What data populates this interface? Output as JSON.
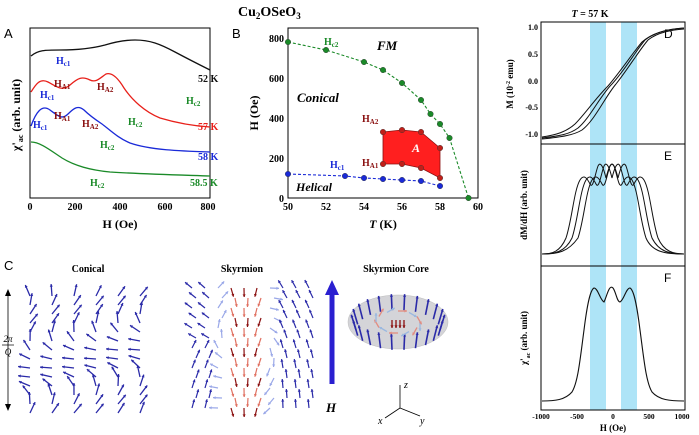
{
  "title": "Cu2OSeO3",
  "title_base": "Cu",
  "title_sub1": "2",
  "title_mid": "OSeO",
  "title_sub2": "3",
  "colors": {
    "black": "#111111",
    "red": "#e8201a",
    "blue": "#1a2ad8",
    "green": "#1a8a28",
    "darkred": "#8a1010",
    "lightblue": "#aee4f7",
    "arrowblue": "#2a1fd0"
  },
  "panelA": {
    "label": "A",
    "ylabel_main": "χ'",
    "ylabel_sub": "ac",
    "ylabel_rest": " (arb. unit)",
    "xlabel": "H (Oe)",
    "xticks": [
      "0",
      "200",
      "400",
      "600",
      "800"
    ],
    "curves": [
      {
        "label": "52 K",
        "color": "#111111"
      },
      {
        "label": "57 K",
        "color": "#e8201a"
      },
      {
        "label": "58 K",
        "color": "#1a2ad8"
      },
      {
        "label": "58.5 K",
        "color": "#1a8a28"
      }
    ],
    "annotations": [
      {
        "main": "H",
        "sub": "c1",
        "color": "#1a2ad8"
      },
      {
        "main": "H",
        "sub": "A1",
        "color": "#8a1010"
      },
      {
        "main": "H",
        "sub": "A2",
        "color": "#8a1010"
      },
      {
        "main": "H",
        "sub": "c1",
        "color": "#1a2ad8"
      },
      {
        "main": "H",
        "sub": "c2",
        "color": "#1a8a28"
      },
      {
        "main": "H",
        "sub": "c1",
        "color": "#1a2ad8"
      },
      {
        "main": "H",
        "sub": "A1",
        "color": "#8a1010"
      },
      {
        "main": "H",
        "sub": "A2",
        "color": "#8a1010"
      },
      {
        "main": "H",
        "sub": "c2",
        "color": "#1a8a28"
      },
      {
        "main": "H",
        "sub": "c2",
        "color": "#1a8a28"
      },
      {
        "main": "H",
        "sub": "c2",
        "color": "#1a8a28"
      }
    ]
  },
  "panelB": {
    "label": "B",
    "ylabel": "H (Oe)",
    "xlabel_T": "T",
    "xlabel_rest": " (K)",
    "xticks": [
      "50",
      "52",
      "54",
      "56",
      "58",
      "60"
    ],
    "yticks": [
      "0",
      "200",
      "400",
      "600",
      "800"
    ],
    "phase_fm": "FM",
    "phase_conical": "Conical",
    "phase_helical": "Helical",
    "phase_a": "A",
    "hc2_main": "H",
    "hc2_sub": "c2",
    "hc1_main": "H",
    "hc1_sub": "c1",
    "ha2_main": "H",
    "ha2_sub": "A2",
    "ha1_main": "H",
    "ha1_sub": "A1",
    "chart_data": {
      "type": "scatter",
      "xlabel": "T (K)",
      "ylabel": "H (Oe)",
      "xlim": [
        50,
        60
      ],
      "ylim": [
        0,
        850
      ],
      "series": [
        {
          "name": "Hc2",
          "x": [
            50,
            52,
            54,
            55,
            56,
            57,
            57.5,
            58,
            58.5,
            59.5
          ],
          "y": [
            780,
            740,
            680,
            640,
            575,
            490,
            420,
            370,
            300,
            0
          ]
        },
        {
          "name": "Hc1",
          "x": [
            50,
            53,
            54,
            55,
            56,
            57,
            58
          ],
          "y": [
            120,
            110,
            100,
            95,
            90,
            85,
            60
          ]
        },
        {
          "name": "HA2",
          "x": [
            55,
            56,
            57,
            58
          ],
          "y": [
            330,
            340,
            330,
            250
          ]
        },
        {
          "name": "HA1",
          "x": [
            55,
            56,
            57,
            58
          ],
          "y": [
            170,
            170,
            150,
            100
          ]
        }
      ]
    }
  },
  "panelC": {
    "label": "C",
    "conical": "Conical",
    "skyrmion": "Skyrmion",
    "core": "Skyrmion Core",
    "period_num": "2π",
    "period_den": "Q",
    "field": "H",
    "ax_z": "z",
    "ax_x": "x",
    "ax_y": "y"
  },
  "panelD": {
    "label": "D",
    "top_T": "T",
    "top_rest": " = 57 K",
    "ylabel": "M (10",
    "ylabel_sup": "-2",
    "ylabel_end": " emu)",
    "yticks": [
      "1.0",
      "0.5",
      "0.0",
      "-0.5",
      "-1.0"
    ]
  },
  "panelE": {
    "label": "E",
    "ylabel": "dM/dH (arb. unit)"
  },
  "panelF": {
    "label": "F",
    "ylabel_main": "χ'",
    "ylabel_sub": "ac",
    "ylabel_rest": " (arb. unit)",
    "xlabel": "H (Oe)",
    "xticks": [
      "-1000",
      "-500",
      "0",
      "500",
      "1000"
    ]
  }
}
